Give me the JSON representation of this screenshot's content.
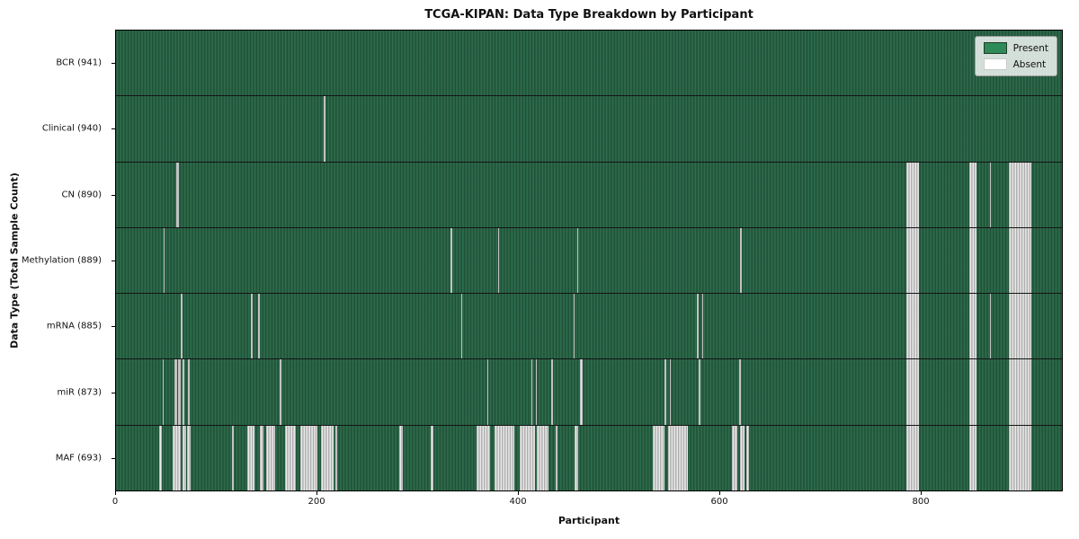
{
  "title": "TCGA-KIPAN: Data Type Breakdown by Participant",
  "xlabel": "Participant",
  "ylabel": "Data Type (Total Sample Count)",
  "legend": {
    "present_label": "Present",
    "absent_label": "Absent"
  },
  "colors": {
    "present": "#2E8B57",
    "present_dark_edge": "#1c4c34",
    "absent": "#f2f2f2",
    "absent_edge": "#9b9b9b"
  },
  "chart_data": {
    "type": "heatmap",
    "title": "TCGA-KIPAN: Data Type Breakdown by Participant",
    "xlabel": "Participant",
    "ylabel": "Data Type (Total Sample Count)",
    "x_range": [
      0,
      941
    ],
    "x_ticks": [
      0,
      200,
      400,
      600,
      800
    ],
    "legend_entries": [
      "Present",
      "Absent"
    ],
    "legend_position": "upper right",
    "grid": false,
    "rows": [
      {
        "label": "BCR (941)",
        "data_type": "BCR",
        "sample_count": 941,
        "absent_ranges": []
      },
      {
        "label": "Clinical (940)",
        "data_type": "Clinical",
        "sample_count": 940,
        "absent_ranges": [
          [
            207,
            1.5
          ]
        ]
      },
      {
        "label": "CN (890)",
        "data_type": "CN",
        "sample_count": 890,
        "absent_ranges": [
          [
            60,
            2.5
          ],
          [
            786,
            13
          ],
          [
            849,
            7
          ],
          [
            869.5,
            1.2
          ],
          [
            888,
            23
          ]
        ]
      },
      {
        "label": "Methylation (889)",
        "data_type": "Methylation",
        "sample_count": 889,
        "absent_ranges": [
          [
            47.5,
            1.2
          ],
          [
            333,
            1.5
          ],
          [
            380,
            1.5
          ],
          [
            459,
            1.2
          ],
          [
            621,
            1.2
          ],
          [
            786,
            13
          ],
          [
            849,
            7
          ],
          [
            888,
            23
          ]
        ]
      },
      {
        "label": "mRNA (885)",
        "data_type": "mRNA",
        "sample_count": 885,
        "absent_ranges": [
          [
            64.5,
            1.5
          ],
          [
            134.5,
            1.5
          ],
          [
            141.5,
            1.5
          ],
          [
            343.5,
            1.2
          ],
          [
            455,
            1.2
          ],
          [
            578,
            1.5
          ],
          [
            583,
            1.2
          ],
          [
            786,
            13
          ],
          [
            849,
            7
          ],
          [
            869.5,
            1.2
          ],
          [
            888,
            23
          ]
        ]
      },
      {
        "label": "miR (873)",
        "data_type": "miR",
        "sample_count": 873,
        "absent_ranges": [
          [
            46.5,
            1.2
          ],
          [
            58.5,
            2
          ],
          [
            62,
            2.5
          ],
          [
            66.5,
            1.5
          ],
          [
            71.5,
            1.5
          ],
          [
            163,
            1.5
          ],
          [
            369,
            1.2
          ],
          [
            413,
            1.5
          ],
          [
            417.5,
            1.2
          ],
          [
            433,
            1.5
          ],
          [
            461.5,
            3
          ],
          [
            546,
            1.2
          ],
          [
            551,
            1.2
          ],
          [
            580,
            1.2
          ],
          [
            620,
            1.5
          ],
          [
            786,
            13
          ],
          [
            849,
            7
          ],
          [
            888,
            23
          ]
        ]
      },
      {
        "label": "MAF (693)",
        "data_type": "MAF",
        "sample_count": 693,
        "absent_ranges": [
          [
            43,
            3
          ],
          [
            56,
            8
          ],
          [
            66,
            4
          ],
          [
            71,
            3
          ],
          [
            115.5,
            1.5
          ],
          [
            131,
            7
          ],
          [
            143,
            4
          ],
          [
            149,
            9
          ],
          [
            168,
            10.5
          ],
          [
            183,
            17
          ],
          [
            204,
            12
          ],
          [
            218.5,
            1.5
          ],
          [
            282,
            3
          ],
          [
            313,
            3
          ],
          [
            359,
            13
          ],
          [
            377,
            19
          ],
          [
            402,
            15
          ],
          [
            419,
            11
          ],
          [
            437.5,
            1.5
          ],
          [
            456.5,
            3
          ],
          [
            534,
            12
          ],
          [
            549,
            20
          ],
          [
            613,
            5
          ],
          [
            621,
            4
          ],
          [
            627,
            3
          ],
          [
            786,
            13
          ],
          [
            849,
            7
          ],
          [
            888,
            23
          ]
        ]
      }
    ]
  }
}
